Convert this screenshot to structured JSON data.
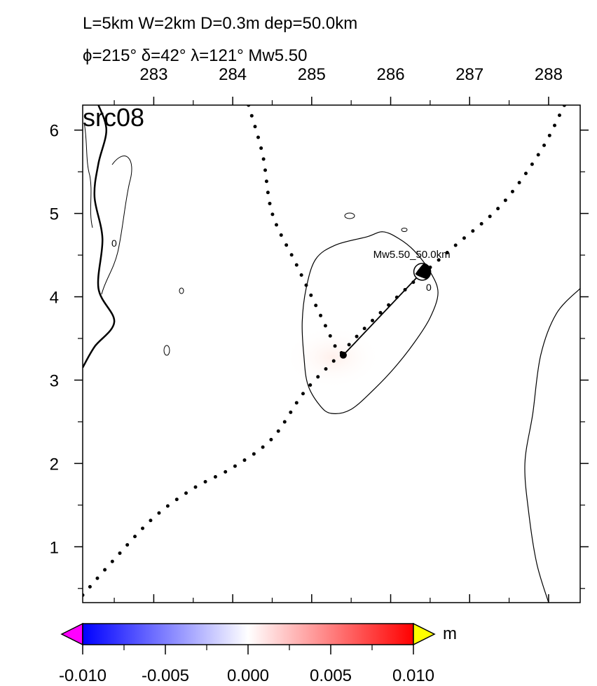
{
  "header": {
    "line1": "L=5km W=2km D=0.3m dep=50.0km",
    "line2": "ϕ=215° δ=42° λ=121° Mw5.50"
  },
  "chart_data": {
    "type": "heatmap",
    "panel_label": "src08",
    "xlim": [
      282.1,
      288.4
    ],
    "ylim": [
      0.33,
      6.3
    ],
    "x_ticks": [
      283,
      284,
      285,
      286,
      287,
      288
    ],
    "x_tick_labels": [
      "283",
      "284",
      "285",
      "286",
      "287",
      "288"
    ],
    "y_ticks": [
      1,
      2,
      3,
      4,
      5,
      6
    ],
    "y_tick_labels": [
      "1",
      "2",
      "3",
      "4",
      "5",
      "6"
    ],
    "grid": false,
    "source": {
      "label": "Mw5.50_50.0km",
      "fault_start": [
        285.4,
        3.3
      ],
      "fault_end": [
        286.4,
        4.3
      ],
      "magnitude": 5.5,
      "depth_km": 50.0
    },
    "contour_label": "0",
    "contour_zero_loop": [
      [
        285.3,
        4.62
      ],
      [
        285.7,
        4.72
      ],
      [
        285.9,
        4.78
      ],
      [
        286.1,
        4.7
      ],
      [
        286.3,
        4.55
      ],
      [
        286.5,
        4.3
      ],
      [
        286.6,
        4.05
      ],
      [
        286.5,
        3.75
      ],
      [
        286.3,
        3.45
      ],
      [
        286.05,
        3.15
      ],
      [
        285.8,
        2.9
      ],
      [
        285.5,
        2.65
      ],
      [
        285.25,
        2.6
      ],
      [
        285.1,
        2.7
      ],
      [
        284.95,
        2.95
      ],
      [
        284.9,
        3.3
      ],
      [
        284.88,
        3.7
      ],
      [
        284.93,
        4.1
      ],
      [
        285.05,
        4.45
      ]
    ],
    "trench_curve": [
      [
        284.2,
        6.3
      ],
      [
        284.38,
        5.7
      ],
      [
        284.5,
        5.0
      ],
      [
        284.8,
        4.4
      ],
      [
        285.05,
        3.9
      ],
      [
        285.3,
        3.4
      ]
    ],
    "plate_boundary_curve": [
      [
        282.1,
        0.42
      ],
      [
        282.5,
        0.85
      ],
      [
        283.0,
        1.35
      ],
      [
        283.5,
        1.7
      ],
      [
        284.0,
        1.95
      ],
      [
        284.5,
        2.3
      ],
      [
        284.9,
        2.85
      ],
      [
        285.3,
        3.25
      ],
      [
        285.7,
        3.65
      ],
      [
        286.2,
        4.1
      ],
      [
        286.8,
        4.6
      ],
      [
        287.4,
        5.1
      ],
      [
        287.9,
        5.75
      ],
      [
        288.2,
        6.3
      ]
    ],
    "coastline_east": [
      [
        288.4,
        4.1
      ],
      [
        288.1,
        3.8
      ],
      [
        287.9,
        3.3
      ],
      [
        287.8,
        2.6
      ],
      [
        287.7,
        2.0
      ],
      [
        287.75,
        1.4
      ],
      [
        287.85,
        0.8
      ],
      [
        288.0,
        0.33
      ]
    ],
    "coastline_west": [
      [
        282.1,
        3.15
      ],
      [
        282.25,
        3.4
      ],
      [
        282.5,
        3.7
      ],
      [
        282.3,
        4.1
      ],
      [
        282.35,
        4.7
      ],
      [
        282.25,
        5.2
      ],
      [
        282.3,
        5.6
      ],
      [
        282.4,
        6.0
      ],
      [
        282.3,
        6.3
      ]
    ],
    "colorbar": {
      "unit": "m",
      "min": -0.01,
      "max": 0.01,
      "tick_values": [
        -0.01,
        -0.005,
        0.0,
        0.005,
        0.01
      ],
      "tick_labels": [
        "-0.010",
        "-0.005",
        "0.000",
        "0.005",
        "0.010"
      ],
      "colors": {
        "low": "#0000ff",
        "mid": "#ffffff",
        "high": "#ff0000",
        "below_range": "#ff00ff",
        "above_range": "#ffff00"
      }
    }
  }
}
